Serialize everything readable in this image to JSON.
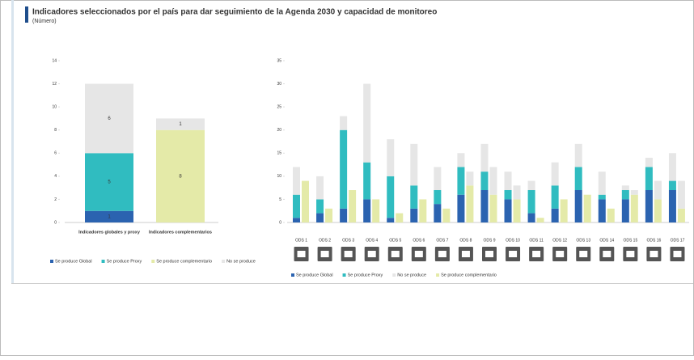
{
  "header": {
    "title": "Indicadores seleccionados por el país para dar seguimiento de la Agenda 2030 y capacidad de monitoreo",
    "subtitle": "(Número)"
  },
  "chart_data": [
    {
      "type": "stacked_bar",
      "categories": [
        "Indicadores globales y proxy",
        "Indicadores complementarios"
      ],
      "ylim": [
        0,
        14
      ],
      "yticks": [
        0,
        2,
        4,
        6,
        8,
        10,
        12,
        14
      ],
      "series": [
        {
          "name": "Se produce Global",
          "color": "#2b63b0",
          "values": [
            1,
            0
          ]
        },
        {
          "name": "Se produce Proxy",
          "color": "#30bcc0",
          "values": [
            5,
            0
          ]
        },
        {
          "name": "Se produce complementario",
          "color": "#e4eaa8",
          "values": [
            0,
            8
          ]
        },
        {
          "name": "No se produce",
          "color": "#e6e6e6",
          "values": [
            6,
            1
          ]
        }
      ]
    },
    {
      "type": "grouped_stacked_bar",
      "categories": [
        "ODS 1",
        "ODS 2",
        "ODS 3",
        "ODS 4",
        "ODS 5",
        "ODS 6",
        "ODS 7",
        "ODS 8",
        "ODS 9",
        "ODS 10",
        "ODS 11",
        "ODS 12",
        "ODS 13",
        "ODS 14",
        "ODS 15",
        "ODS 16",
        "ODS 17"
      ],
      "ylim": [
        0,
        35
      ],
      "yticks": [
        0,
        5,
        10,
        15,
        20,
        25,
        30,
        35
      ],
      "series": [
        {
          "name": "Se produce Global",
          "color": "#2b63b0",
          "stack": 0,
          "values": [
            1,
            2,
            3,
            5,
            1,
            3,
            4,
            6,
            7,
            5,
            2,
            3,
            7,
            5,
            5,
            7,
            7
          ]
        },
        {
          "name": "Se produce Proxy",
          "color": "#30bcc0",
          "stack": 0,
          "values": [
            5,
            3,
            17,
            8,
            9,
            5,
            3,
            6,
            4,
            2,
            5,
            5,
            5,
            1,
            2,
            5,
            2
          ]
        },
        {
          "name": "No se produce",
          "color": "#e6e6e6",
          "stack": 0,
          "values": [
            6,
            5,
            3,
            17,
            8,
            9,
            5,
            3,
            6,
            4,
            2,
            5,
            5,
            5,
            1,
            2,
            6
          ]
        },
        {
          "name": "Se produce complementario",
          "color": "#e4eaa8",
          "stack": 1,
          "values": [
            9,
            3,
            7,
            5,
            2,
            5,
            3,
            8,
            6,
            5,
            1,
            5,
            6,
            3,
            6,
            5,
            3
          ]
        },
        {
          "name": "No se produce",
          "color": "#e6e6e6",
          "stack": 1,
          "values": [
            0,
            0,
            0,
            0,
            0,
            0,
            0,
            3,
            6,
            3,
            0,
            0,
            0,
            0,
            1,
            4,
            6
          ]
        }
      ]
    }
  ]
}
